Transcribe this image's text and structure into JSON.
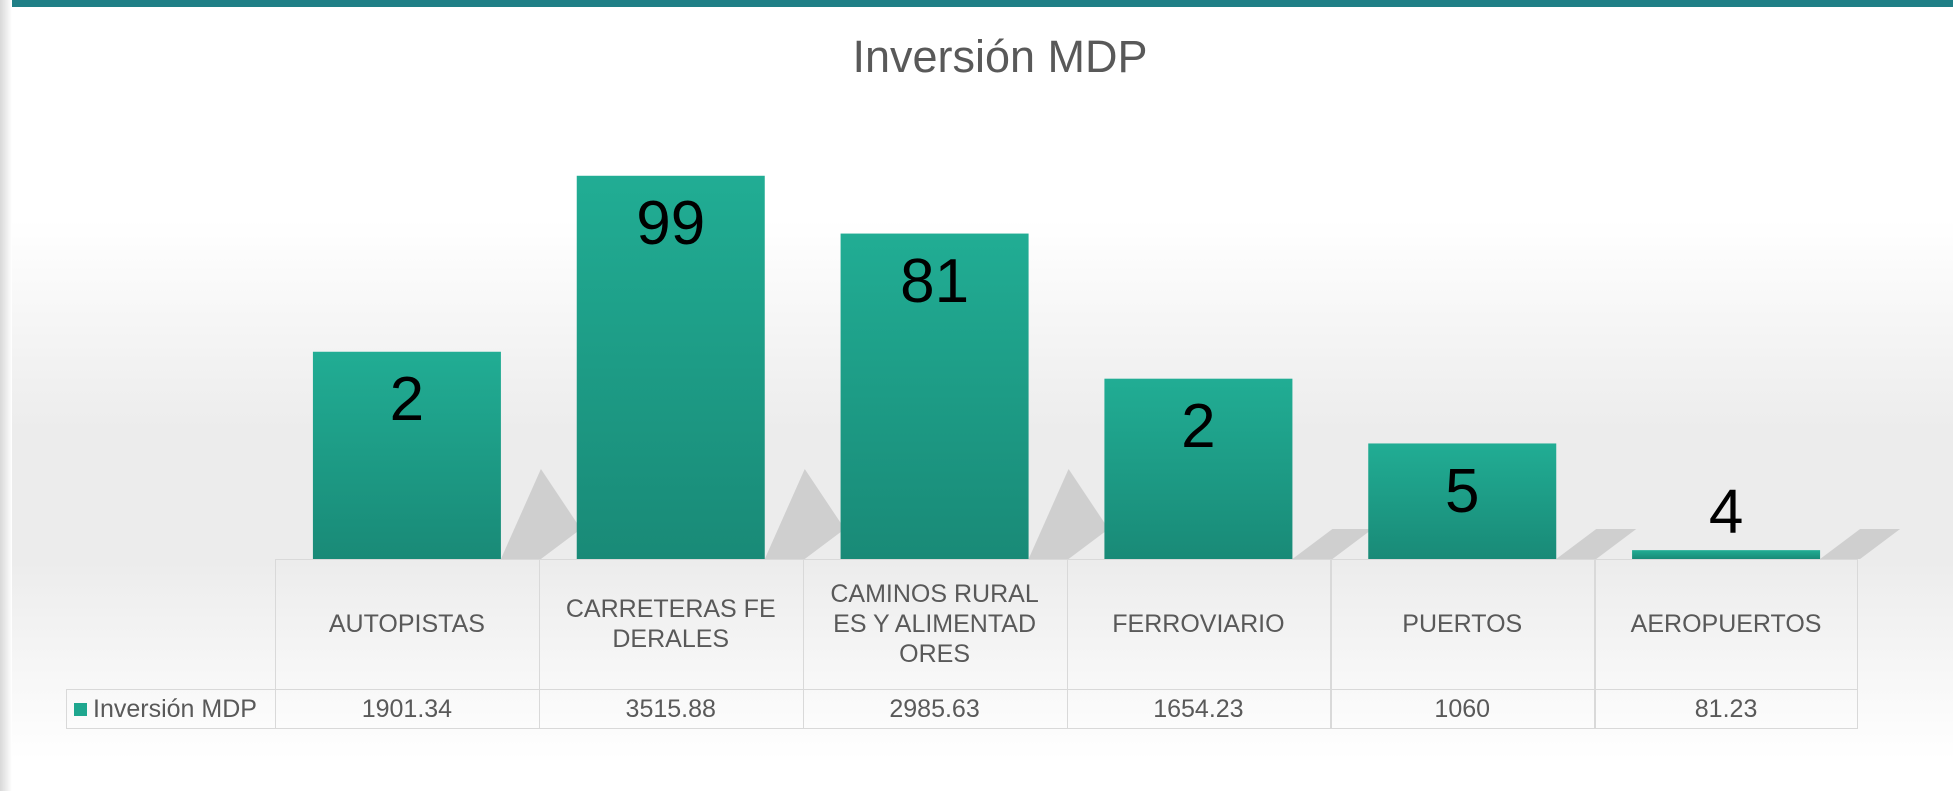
{
  "chart_data": {
    "type": "bar",
    "title": "Inversión MDP",
    "categories": [
      "AUTOPISTAS",
      "CARRETERAS FEDERALES",
      "CAMINOS RURALES Y ALIMENTADORES",
      "FERROVIARIO",
      "PUERTOS",
      "AEROPUERTOS"
    ],
    "series": [
      {
        "name": "Inversión MDP",
        "color": "#1fa78f",
        "values": [
          1901.34,
          3515.88,
          2985.63,
          1654.23,
          1060,
          81.23
        ]
      }
    ],
    "data_labels": [
      "2",
      "99",
      "81",
      "2",
      "5",
      "4"
    ],
    "ylim": [
      0,
      4000
    ]
  }
}
